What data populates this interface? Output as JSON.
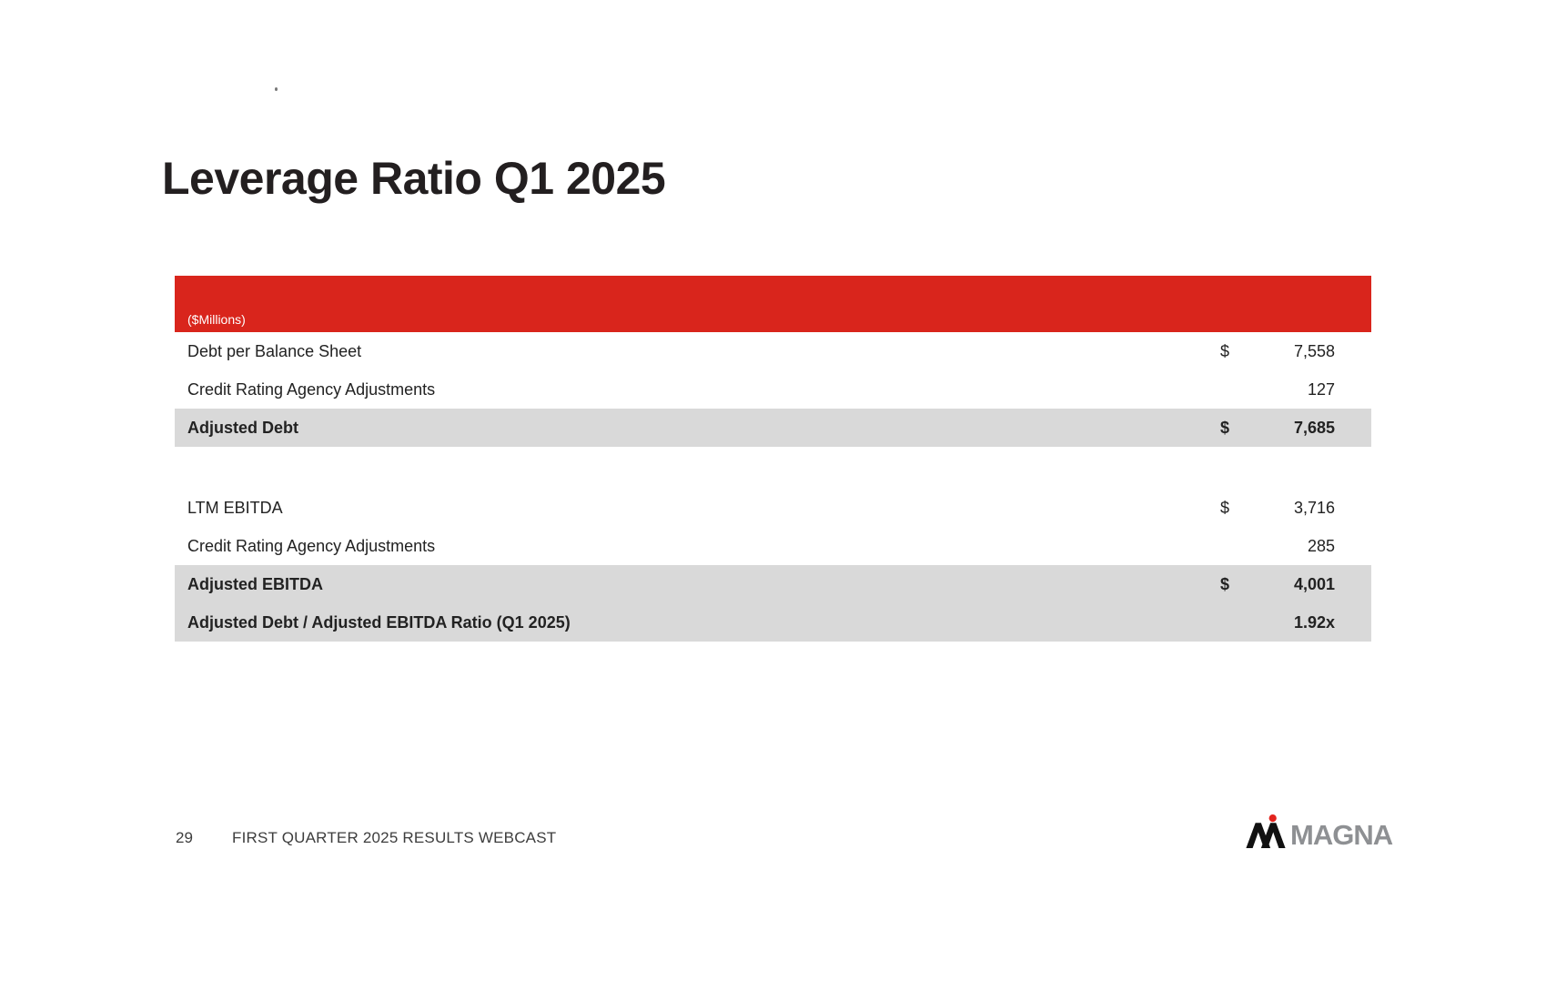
{
  "slide": {
    "title": "Leverage Ratio Q1 2025"
  },
  "table": {
    "units_note": "($Millions)",
    "colors": {
      "header_bg": "#d9251c",
      "highlight_bg": "#d9d9d9"
    },
    "sections": [
      {
        "rows": [
          {
            "label": "Debt per Balance Sheet",
            "currency": "$",
            "value": "7,558",
            "bold": false,
            "highlight": false
          },
          {
            "label": "Credit Rating Agency Adjustments",
            "currency": "",
            "value": "127",
            "bold": false,
            "highlight": false
          },
          {
            "label": "Adjusted Debt",
            "currency": "$",
            "value": "7,685",
            "bold": true,
            "highlight": true
          }
        ]
      },
      {
        "rows": [
          {
            "label": "LTM EBITDA",
            "currency": "$",
            "value": "3,716",
            "bold": false,
            "highlight": false
          },
          {
            "label": "Credit Rating Agency Adjustments",
            "currency": "",
            "value": "285",
            "bold": false,
            "highlight": false
          },
          {
            "label": "Adjusted EBITDA",
            "currency": "$",
            "value": "4,001",
            "bold": true,
            "highlight": true
          },
          {
            "label": "Adjusted Debt / Adjusted EBITDA Ratio (Q1 2025)",
            "currency": "",
            "value": "1.92x",
            "bold": true,
            "highlight": true
          }
        ]
      }
    ]
  },
  "footer": {
    "page_number": "29",
    "label": "FIRST QUARTER 2025 RESULTS WEBCAST",
    "logo_text": "MAGNA",
    "logo_colors": {
      "mark": "#111111",
      "dot": "#e3231d",
      "wordmark": "#8e9093"
    }
  }
}
